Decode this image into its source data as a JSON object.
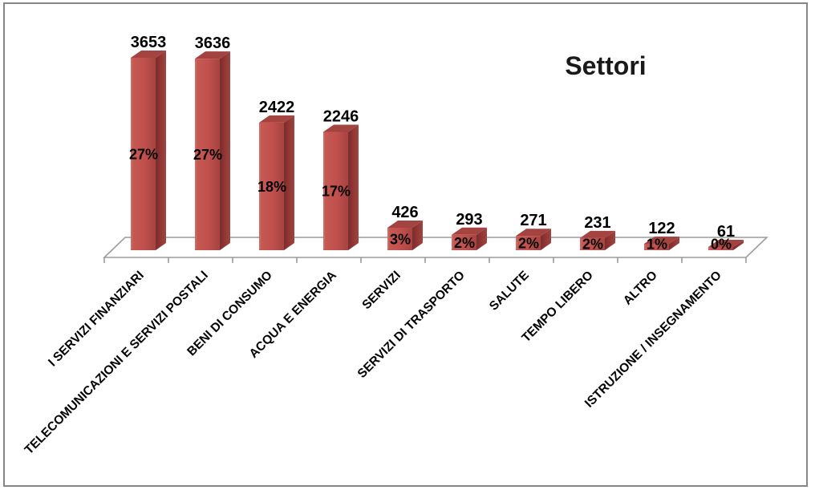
{
  "window": {
    "background_color": "#FFFFFF",
    "border_color": "#868686"
  },
  "chart_data": {
    "type": "bar",
    "style": "3d-column",
    "title": "Settori",
    "categories": [
      "I SERVIZI FINANZIARI",
      "TELECOMUNICAZIONI E SERVIZI POSTALI",
      "BENI DI CONSUMO",
      "ACQUA E ENERGIA",
      "SERVIZI",
      "SERVIZI DI TRASPORTO",
      "SALUTE",
      "TEMPO LIBERO",
      "ALTRO",
      "ISTRUZIONE / INSEGNAMENTO"
    ],
    "values": [
      3653,
      3636,
      2422,
      2246,
      426,
      293,
      271,
      231,
      122,
      61
    ],
    "percent_labels": [
      "27%",
      "27%",
      "18%",
      "17%",
      "3%",
      "2%",
      "2%",
      "2%",
      "1%",
      "0%"
    ],
    "ylim": [
      0,
      3653
    ],
    "gridlines": false,
    "legend": "none",
    "value_axis_visible": false,
    "colors": {
      "bar_front": "#C0504D",
      "bar_front_light": "#C85B55",
      "bar_front_dark": "#A94543",
      "bar_side_dark": "#7C2B29",
      "bar_side_light": "#A24441",
      "bar_top": "#A6423F",
      "axis_line": "#9C9C9C",
      "label_text": "#000000",
      "title_text": "#1A1A1A"
    }
  }
}
